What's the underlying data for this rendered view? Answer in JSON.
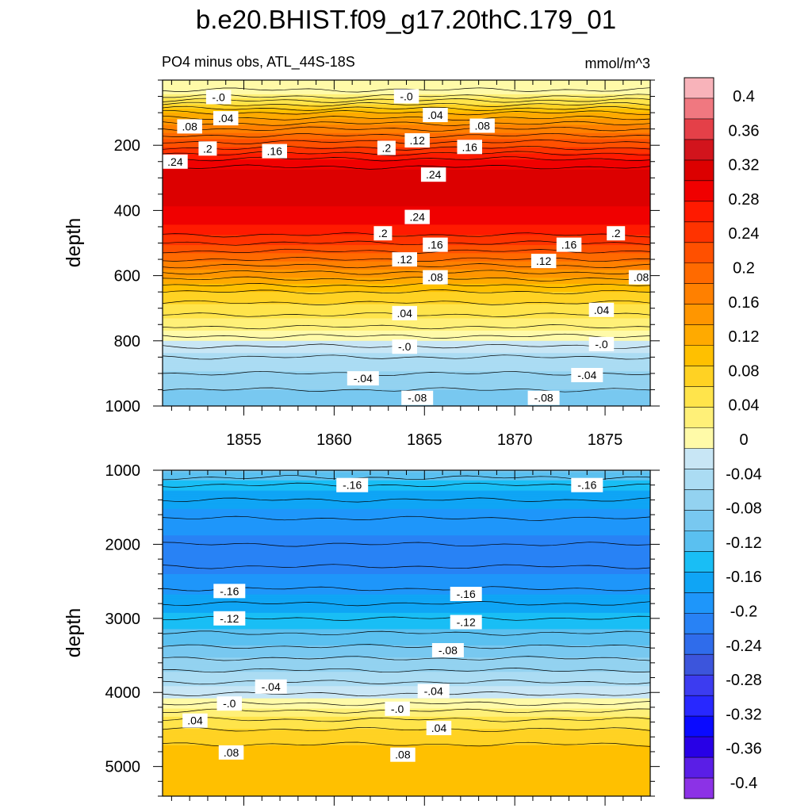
{
  "title": "b.e20.BHIST.f09_g17.20thC.179_01",
  "panel_left_title": "PO4 minus obs, ATL_44S-18S",
  "units": "mmol/m^3",
  "chart_data": [
    {
      "type": "contour",
      "name": "upper-panel",
      "xlim": [
        1850.5,
        1877.5
      ],
      "ylim": [
        0,
        1000
      ],
      "y_reversed": true,
      "ylabel": "depth",
      "xticks": [
        1855,
        1860,
        1865,
        1870,
        1875
      ],
      "xtick_labels": [
        "1855",
        "1860",
        "1865",
        "1870",
        "1875"
      ],
      "yticks": [
        200,
        400,
        600,
        800,
        1000
      ],
      "ytick_labels": [
        "200",
        "400",
        "600",
        "800",
        "1000"
      ],
      "profile_depths": [
        0,
        25,
        50,
        75,
        100,
        150,
        200,
        250,
        300,
        350,
        400,
        450,
        500,
        550,
        600,
        650,
        700,
        750,
        800,
        850,
        900,
        950,
        1000
      ],
      "profile_values": [
        -0.01,
        -0.005,
        0.02,
        0.06,
        0.1,
        0.16,
        0.21,
        0.27,
        0.3,
        0.3,
        0.28,
        0.26,
        0.22,
        0.18,
        0.13,
        0.08,
        0.05,
        0.025,
        -0.01,
        -0.04,
        -0.06,
        -0.08,
        -0.09
      ],
      "labels": [
        {
          "text": "-.0",
          "x": 1853.6,
          "y": 52
        },
        {
          "text": ".04",
          "x": 1854.0,
          "y": 117
        },
        {
          "text": ".08",
          "x": 1852.0,
          "y": 142
        },
        {
          "text": "-.0",
          "x": 1864.0,
          "y": 50
        },
        {
          "text": ".04",
          "x": 1865.6,
          "y": 107
        },
        {
          "text": ".08",
          "x": 1868.2,
          "y": 140
        },
        {
          "text": ".12",
          "x": 1864.6,
          "y": 185
        },
        {
          "text": ".16",
          "x": 1856.7,
          "y": 218
        },
        {
          "text": ".16",
          "x": 1867.5,
          "y": 205
        },
        {
          "text": ".2",
          "x": 1853.0,
          "y": 210
        },
        {
          "text": ".2",
          "x": 1862.9,
          "y": 208
        },
        {
          "text": ".24",
          "x": 1851.2,
          "y": 250
        },
        {
          "text": ".24",
          "x": 1865.5,
          "y": 290
        },
        {
          "text": ".24",
          "x": 1864.6,
          "y": 420
        },
        {
          "text": ".2",
          "x": 1862.7,
          "y": 470
        },
        {
          "text": ".2",
          "x": 1875.6,
          "y": 470
        },
        {
          "text": ".16",
          "x": 1865.6,
          "y": 505
        },
        {
          "text": ".16",
          "x": 1873.0,
          "y": 505
        },
        {
          "text": ".12",
          "x": 1863.9,
          "y": 550
        },
        {
          "text": ".12",
          "x": 1871.6,
          "y": 555
        },
        {
          "text": ".08",
          "x": 1865.6,
          "y": 605
        },
        {
          "text": ".08",
          "x": 1877.0,
          "y": 605
        },
        {
          "text": ".04",
          "x": 1863.9,
          "y": 715
        },
        {
          "text": ".04",
          "x": 1874.8,
          "y": 705
        },
        {
          "text": "-.0",
          "x": 1863.9,
          "y": 818
        },
        {
          "text": "-.0",
          "x": 1874.8,
          "y": 810
        },
        {
          "text": "-.04",
          "x": 1861.6,
          "y": 915
        },
        {
          "text": "-.04",
          "x": 1874.0,
          "y": 905
        },
        {
          "text": "-.08",
          "x": 1864.6,
          "y": 975
        },
        {
          "text": "-.08",
          "x": 1871.6,
          "y": 975
        }
      ]
    },
    {
      "type": "contour",
      "name": "lower-panel",
      "xlim": [
        1850.5,
        1877.5
      ],
      "ylim": [
        1000,
        5400
      ],
      "y_reversed": true,
      "ylabel": "depth",
      "yticks": [
        1000,
        2000,
        3000,
        4000,
        5000
      ],
      "ytick_labels": [
        "1000",
        "2000",
        "3000",
        "4000",
        "5000"
      ],
      "profile_depths": [
        1000,
        1200,
        1500,
        1800,
        2000,
        2300,
        2500,
        2700,
        2900,
        3100,
        3300,
        3500,
        3700,
        3900,
        4100,
        4300,
        4500,
        4700,
        4900,
        5100,
        5400
      ],
      "profile_values": [
        -0.1,
        -0.14,
        -0.17,
        -0.19,
        -0.2,
        -0.2,
        -0.19,
        -0.17,
        -0.15,
        -0.13,
        -0.11,
        -0.085,
        -0.06,
        -0.035,
        -0.01,
        0.03,
        0.06,
        0.08,
        0.09,
        0.1,
        0.1
      ],
      "labels": [
        {
          "text": "-.16",
          "x": 1861.0,
          "y": 1200
        },
        {
          "text": "-.16",
          "x": 1874.0,
          "y": 1200
        },
        {
          "text": "-.16",
          "x": 1854.2,
          "y": 2630
        },
        {
          "text": "-.16",
          "x": 1867.3,
          "y": 2670
        },
        {
          "text": "-.12",
          "x": 1854.2,
          "y": 3000
        },
        {
          "text": "-.12",
          "x": 1867.3,
          "y": 3050
        },
        {
          "text": "-.08",
          "x": 1866.3,
          "y": 3430
        },
        {
          "text": "-.04",
          "x": 1856.5,
          "y": 3920
        },
        {
          "text": "-.04",
          "x": 1865.5,
          "y": 3980
        },
        {
          "text": "-.0",
          "x": 1854.2,
          "y": 4150
        },
        {
          "text": "-.0",
          "x": 1863.5,
          "y": 4220
        },
        {
          "text": ".04",
          "x": 1852.3,
          "y": 4380
        },
        {
          "text": ".04",
          "x": 1865.8,
          "y": 4480
        },
        {
          "text": ".08",
          "x": 1854.3,
          "y": 4810
        },
        {
          "text": ".08",
          "x": 1863.8,
          "y": 4840
        }
      ]
    }
  ],
  "colorbar": {
    "levels": [
      -0.4,
      -0.36,
      -0.32,
      -0.28,
      -0.24,
      -0.2,
      -0.16,
      -0.12,
      -0.08,
      -0.04,
      0,
      0.04,
      0.08,
      0.12,
      0.16,
      0.2,
      0.24,
      0.28,
      0.32,
      0.36,
      0.4
    ],
    "labels": [
      "0.4",
      "0.36",
      "0.32",
      "0.28",
      "0.24",
      "0.2",
      "0.16",
      "0.12",
      "0.08",
      "0.04",
      "0",
      "-0.04",
      "-0.08",
      "-0.12",
      "-0.16",
      "-0.2",
      "-0.24",
      "-0.28",
      "-0.32",
      "-0.36",
      "-0.4"
    ],
    "colors_top_to_bottom": [
      "#F8B3BA",
      "#F07880",
      "#E44048",
      "#D2141C",
      "#DC0000",
      "#F00000",
      "#FF1A00",
      "#FF3300",
      "#FF5000",
      "#FF6A00",
      "#FF8000",
      "#FF9600",
      "#FFAA00",
      "#FFC000",
      "#FFD223",
      "#FFE44B",
      "#FFF078",
      "#FFFAA8",
      "#C8E6F5",
      "#ABDCF3",
      "#93D2F0",
      "#78C8F0",
      "#5AC0F0",
      "#19BEF5",
      "#0FA5F5",
      "#1E96FA",
      "#2882F5",
      "#2F6CEB",
      "#3C55DC",
      "#3C3CF0",
      "#2828FF",
      "#0A0AFF",
      "#2800E6",
      "#5A1EE6",
      "#8C32E6"
    ]
  }
}
